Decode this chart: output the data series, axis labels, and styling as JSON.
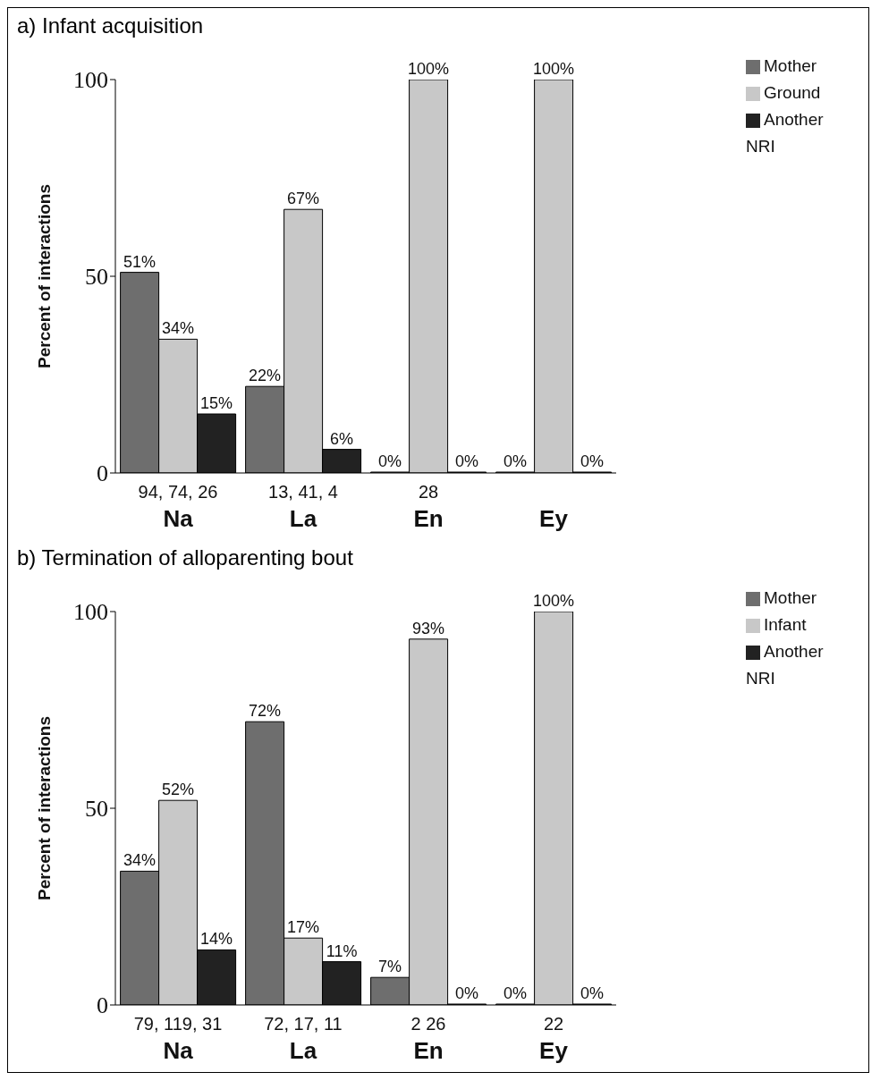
{
  "chart_data": [
    {
      "type": "bar",
      "title": "a) Infant acquisition",
      "ylabel": "Percent of interactions",
      "categories": [
        "Na",
        "La",
        "En",
        "Ey"
      ],
      "ylim": [
        0,
        100
      ],
      "yticks": [
        0,
        50,
        100
      ],
      "legend": "top right",
      "series": [
        {
          "name": "Mother",
          "color": "#6e6e6e",
          "values": [
            51,
            22,
            0,
            0
          ],
          "value_labels": [
            "51%",
            "22%",
            "0%",
            "0%"
          ]
        },
        {
          "name": "Ground",
          "color": "#c8c8c8",
          "values": [
            34,
            67,
            100,
            100
          ],
          "value_labels": [
            "34%",
            "67%",
            "100%",
            "100%"
          ]
        },
        {
          "name": "Another NRI",
          "color": "#222222",
          "values": [
            15,
            6,
            0,
            0
          ],
          "value_labels": [
            "15%",
            "6%",
            "0%",
            "0%"
          ]
        }
      ],
      "annotations": [
        "94, 74, 26",
        "13, 41, 4",
        "28"
      ]
    },
    {
      "type": "bar",
      "title": "b) Termination of alloparenting bout",
      "ylabel": "Percent of interactions",
      "categories": [
        "Na",
        "La",
        "En",
        "Ey"
      ],
      "ylim": [
        0,
        100
      ],
      "yticks": [
        0,
        50,
        100
      ],
      "legend": "top right",
      "series": [
        {
          "name": "Mother",
          "color": "#6e6e6e",
          "values": [
            34,
            72,
            7,
            0
          ],
          "value_labels": [
            "34%",
            "72%",
            "7%",
            "0%"
          ]
        },
        {
          "name": "Infant",
          "color": "#c8c8c8",
          "values": [
            52,
            17,
            93,
            100
          ],
          "value_labels": [
            "52%",
            "17%",
            "93%",
            "100%"
          ]
        },
        {
          "name": "Another NRI",
          "color": "#222222",
          "values": [
            14,
            11,
            0,
            0
          ],
          "value_labels": [
            "14%",
            "11%",
            "0%",
            "0%"
          ]
        }
      ],
      "annotations": [
        "79, 119, 31",
        "72, 17, 11",
        "2  26",
        "22"
      ]
    }
  ]
}
